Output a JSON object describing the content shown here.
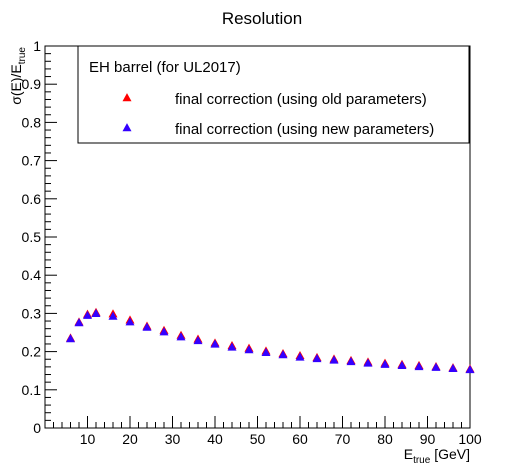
{
  "chart_data": {
    "type": "scatter",
    "title": "Resolution",
    "ylabel": {
      "main": "σ(E)/E",
      "sub": "true"
    },
    "xlabel": {
      "main": "E",
      "sub": "true",
      "suffix": " [GeV]"
    },
    "xlim": [
      0,
      100
    ],
    "ylim": [
      0,
      1
    ],
    "x_ticks": [
      10,
      20,
      30,
      40,
      50,
      60,
      70,
      80,
      90,
      100
    ],
    "x_tick_labels": [
      "10",
      "20",
      "30",
      "40",
      "50",
      "60",
      "70",
      "80",
      "90",
      "100"
    ],
    "y_ticks": [
      0,
      0.1,
      0.2,
      0.3,
      0.4,
      0.5,
      0.6,
      0.7,
      0.8,
      0.9,
      1
    ],
    "y_tick_labels": [
      "0",
      "0.1",
      "0.2",
      "0.3",
      "0.4",
      "0.5",
      "0.6",
      "0.7",
      "0.8",
      "0.9",
      "1"
    ],
    "grid": false,
    "legend": {
      "placement": "top-right",
      "header": "EH barrel (for UL2017)"
    },
    "series": [
      {
        "name": "final correction (using old parameters)",
        "color": "#ff0000",
        "marker": "triangle-up",
        "x": [
          6,
          8,
          10,
          12,
          16,
          20,
          24,
          28,
          32,
          36,
          40,
          44,
          48,
          52,
          56,
          60,
          64,
          68,
          72,
          76,
          80,
          84,
          88,
          92,
          96,
          100
        ],
        "y": [
          0.235,
          0.277,
          0.297,
          0.302,
          0.298,
          0.282,
          0.266,
          0.255,
          0.242,
          0.232,
          0.222,
          0.215,
          0.208,
          0.201,
          0.194,
          0.189,
          0.184,
          0.18,
          0.176,
          0.172,
          0.169,
          0.166,
          0.163,
          0.16,
          0.157,
          0.154
        ]
      },
      {
        "name": "final correction (using new parameters)",
        "color": "#3300ff",
        "marker": "triangle-up",
        "x": [
          6,
          8,
          10,
          12,
          16,
          20,
          24,
          28,
          32,
          36,
          40,
          44,
          48,
          52,
          56,
          60,
          64,
          68,
          72,
          76,
          80,
          84,
          88,
          92,
          96,
          100
        ],
        "y": [
          0.233,
          0.275,
          0.294,
          0.299,
          0.292,
          0.277,
          0.263,
          0.251,
          0.238,
          0.228,
          0.219,
          0.211,
          0.204,
          0.197,
          0.191,
          0.185,
          0.181,
          0.177,
          0.173,
          0.169,
          0.166,
          0.163,
          0.16,
          0.158,
          0.155,
          0.152
        ]
      }
    ]
  }
}
